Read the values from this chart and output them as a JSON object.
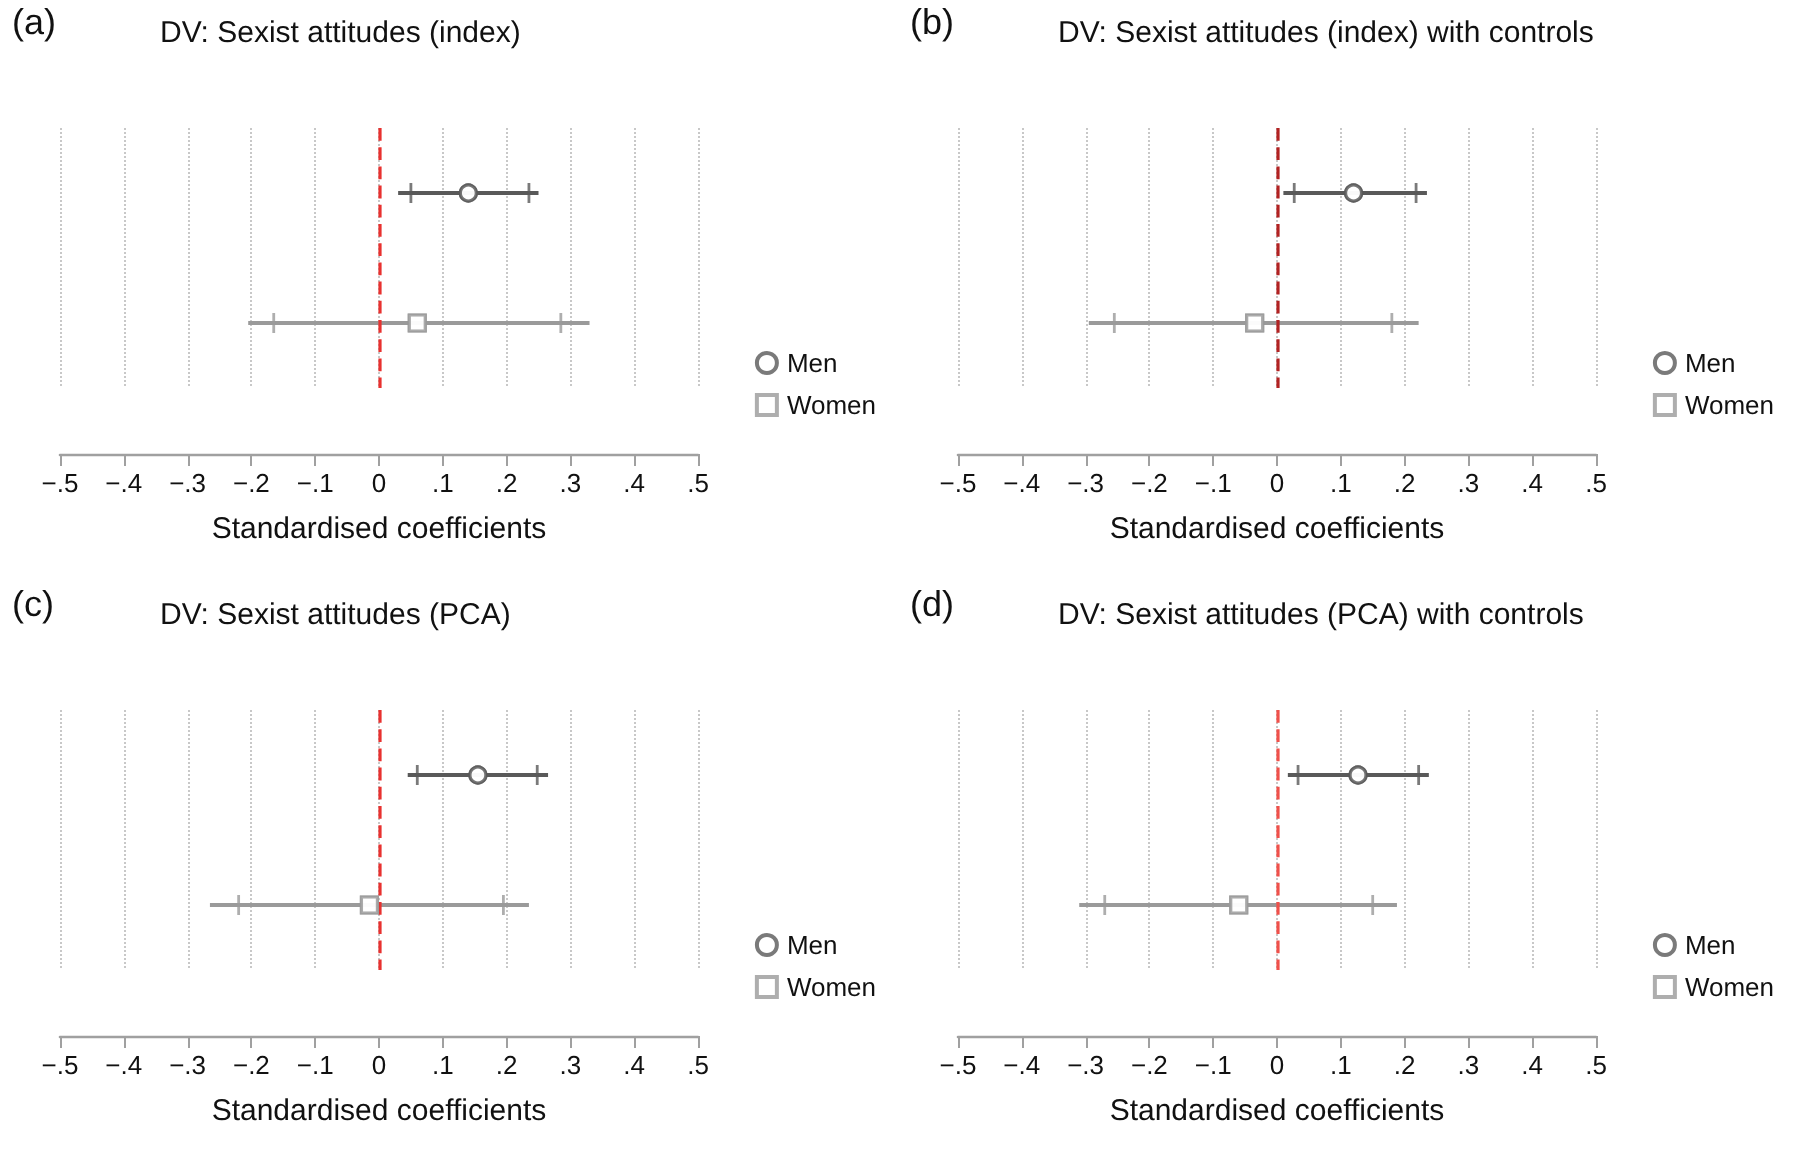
{
  "chart_data": [
    {
      "type": "scatter",
      "title": "DV: Sexist attitudes (index)",
      "annotations": [
        "(a)"
      ],
      "xlabel": "Standardised coefficients",
      "orientation": "horizontal",
      "categories": [
        null,
        null
      ],
      "tick_labels": "x",
      "grid": "x",
      "legend": "right",
      "xlim": [
        -0.5,
        0.5
      ],
      "xticks": [
        {
          "value": -0.5,
          "label": "−.5"
        },
        {
          "value": -0.4,
          "label": "−.4"
        },
        {
          "value": -0.3,
          "label": "−.3"
        },
        {
          "value": -0.2,
          "label": "−.2"
        },
        {
          "value": -0.1,
          "label": "−.1"
        },
        {
          "value": 0,
          "label": "0"
        },
        {
          "value": 0.1,
          "label": ".1"
        },
        {
          "value": 0.2,
          "label": ".2"
        },
        {
          "value": 0.3,
          "label": ".3"
        },
        {
          "value": 0.4,
          "label": ".4"
        },
        {
          "value": 0.5,
          "label": ".5"
        }
      ],
      "ref_lines": [
        {
          "axis": "x",
          "value": 0,
          "label": null,
          "color": "#e8312f",
          "line_style": "dashed"
        }
      ],
      "series": [
        {
          "name": "Men",
          "color": "#595959",
          "marker": "circle",
          "values": [
            0.14,
            null
          ],
          "errors": [
            [
              0.03,
              0.25
            ],
            null
          ]
        },
        {
          "name": "Women",
          "color": "#9a9a9a",
          "marker": "square",
          "values": [
            null,
            0.06
          ],
          "errors": [
            null,
            [
              -0.205,
              0.33
            ]
          ]
        },
        {
          "color": "#595959",
          "marker": "circle",
          "values": [
            0.14,
            null
          ],
          "errors": [
            [
              0.05,
              0.235
            ],
            null
          ]
        },
        {
          "color": "#9a9a9a",
          "marker": "square",
          "values": [
            null,
            0.06
          ],
          "errors": [
            null,
            [
              -0.165,
              0.285
            ]
          ]
        }
      ]
    },
    {
      "type": "scatter",
      "title": "DV: Sexist attitudes (index) with controls",
      "annotations": [
        "(b)"
      ],
      "xlabel": "Standardised coefficients",
      "orientation": "horizontal",
      "categories": [
        null,
        null
      ],
      "tick_labels": "x",
      "grid": "x",
      "legend": "right",
      "xlim": [
        -0.5,
        0.5
      ],
      "xticks": [
        {
          "value": -0.5,
          "label": "−.5"
        },
        {
          "value": -0.4,
          "label": "−.4"
        },
        {
          "value": -0.3,
          "label": "−.3"
        },
        {
          "value": -0.2,
          "label": "−.2"
        },
        {
          "value": -0.1,
          "label": "−.1"
        },
        {
          "value": 0,
          "label": "0"
        },
        {
          "value": 0.1,
          "label": ".1"
        },
        {
          "value": 0.2,
          "label": ".2"
        },
        {
          "value": 0.3,
          "label": ".3"
        },
        {
          "value": 0.4,
          "label": ".4"
        },
        {
          "value": 0.5,
          "label": ".5"
        }
      ],
      "ref_lines": [
        {
          "axis": "x",
          "value": 0,
          "label": null,
          "color": "#b22222",
          "line_style": "dashed"
        }
      ],
      "series": [
        {
          "name": "Men",
          "color": "#595959",
          "marker": "circle",
          "values": [
            0.12,
            null
          ],
          "errors": [
            [
              0.01,
              0.235
            ],
            null
          ]
        },
        {
          "name": "Women",
          "color": "#9a9a9a",
          "marker": "square",
          "values": [
            null,
            -0.035
          ],
          "errors": [
            null,
            [
              -0.295,
              0.222
            ]
          ]
        },
        {
          "color": "#595959",
          "marker": "circle",
          "values": [
            0.12,
            null
          ],
          "errors": [
            [
              0.027,
              0.218
            ],
            null
          ]
        },
        {
          "color": "#9a9a9a",
          "marker": "square",
          "values": [
            null,
            -0.035
          ],
          "errors": [
            null,
            [
              -0.255,
              0.18
            ]
          ]
        }
      ]
    },
    {
      "type": "scatter",
      "title": "DV: Sexist attitudes (PCA)",
      "annotations": [
        "(c)"
      ],
      "xlabel": "Standardised coefficients",
      "orientation": "horizontal",
      "categories": [
        null,
        null
      ],
      "tick_labels": "x",
      "grid": "x",
      "legend": "right",
      "xlim": [
        -0.5,
        0.5
      ],
      "xticks": [
        {
          "value": -0.5,
          "label": "−.5"
        },
        {
          "value": -0.4,
          "label": "−.4"
        },
        {
          "value": -0.3,
          "label": "−.3"
        },
        {
          "value": -0.2,
          "label": "−.2"
        },
        {
          "value": -0.1,
          "label": "−.1"
        },
        {
          "value": 0,
          "label": "0"
        },
        {
          "value": 0.1,
          "label": ".1"
        },
        {
          "value": 0.2,
          "label": ".2"
        },
        {
          "value": 0.3,
          "label": ".3"
        },
        {
          "value": 0.4,
          "label": ".4"
        },
        {
          "value": 0.5,
          "label": ".5"
        }
      ],
      "ref_lines": [
        {
          "axis": "x",
          "value": 0,
          "label": null,
          "color": "#e8312f",
          "line_style": "dashed"
        }
      ],
      "series": [
        {
          "name": "Men",
          "color": "#595959",
          "marker": "circle",
          "values": [
            0.155,
            null
          ],
          "errors": [
            [
              0.045,
              0.265
            ],
            null
          ]
        },
        {
          "name": "Women",
          "color": "#9a9a9a",
          "marker": "square",
          "values": [
            null,
            -0.015
          ],
          "errors": [
            null,
            [
              -0.265,
              0.235
            ]
          ]
        },
        {
          "color": "#595959",
          "marker": "circle",
          "values": [
            0.155,
            null
          ],
          "errors": [
            [
              0.06,
              0.248
            ],
            null
          ]
        },
        {
          "color": "#9a9a9a",
          "marker": "square",
          "values": [
            null,
            -0.015
          ],
          "errors": [
            null,
            [
              -0.22,
              0.195
            ]
          ]
        }
      ]
    },
    {
      "type": "scatter",
      "title": "DV: Sexist attitudes (PCA) with controls",
      "annotations": [
        "(d)"
      ],
      "xlabel": "Standardised coefficients",
      "orientation": "horizontal",
      "categories": [
        null,
        null
      ],
      "tick_labels": "x",
      "grid": "x",
      "legend": "right",
      "xlim": [
        -0.5,
        0.5
      ],
      "xticks": [
        {
          "value": -0.5,
          "label": "−.5"
        },
        {
          "value": -0.4,
          "label": "−.4"
        },
        {
          "value": -0.3,
          "label": "−.3"
        },
        {
          "value": -0.2,
          "label": "−.2"
        },
        {
          "value": -0.1,
          "label": "−.1"
        },
        {
          "value": 0,
          "label": "0"
        },
        {
          "value": 0.1,
          "label": ".1"
        },
        {
          "value": 0.2,
          "label": ".2"
        },
        {
          "value": 0.3,
          "label": ".3"
        },
        {
          "value": 0.4,
          "label": ".4"
        },
        {
          "value": 0.5,
          "label": ".5"
        }
      ],
      "ref_lines": [
        {
          "axis": "x",
          "value": 0,
          "label": null,
          "color": "#f0504a",
          "line_style": "dashed"
        }
      ],
      "series": [
        {
          "name": "Men",
          "color": "#595959",
          "marker": "circle",
          "values": [
            0.127,
            null
          ],
          "errors": [
            [
              0.017,
              0.238
            ],
            null
          ]
        },
        {
          "name": "Women",
          "color": "#9a9a9a",
          "marker": "square",
          "values": [
            null,
            -0.06
          ],
          "errors": [
            null,
            [
              -0.31,
              0.188
            ]
          ]
        },
        {
          "color": "#595959",
          "marker": "circle",
          "values": [
            0.127,
            null
          ],
          "errors": [
            [
              0.033,
              0.222
            ],
            null
          ]
        },
        {
          "color": "#9a9a9a",
          "marker": "square",
          "values": [
            null,
            -0.06
          ],
          "errors": [
            null,
            [
              -0.27,
              0.15
            ]
          ]
        }
      ]
    }
  ]
}
